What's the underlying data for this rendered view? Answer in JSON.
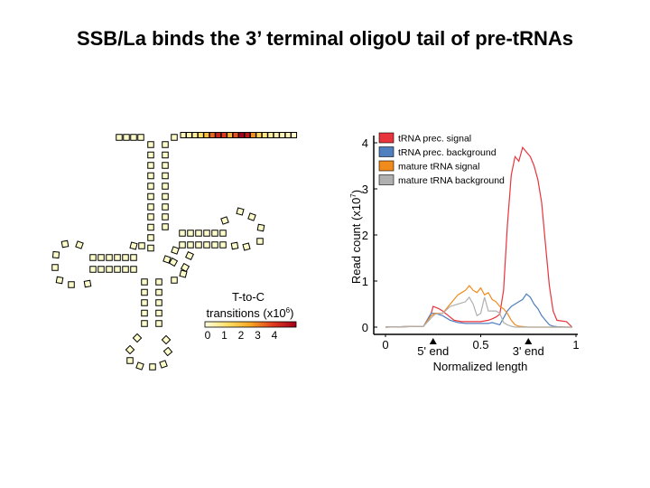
{
  "slide": {
    "title": "SSB/La binds the 3’ terminal oligoU tail of pre-tRNAs"
  },
  "trna_figure": {
    "colorbar_title_line1": "T-to-C",
    "colorbar_title_line2_prefix": "transitions (x10",
    "colorbar_title_line2_exp": "6",
    "colorbar_title_line2_suffix": ")",
    "colorbar_ticks": [
      "0",
      "1",
      "2",
      "3",
      "4"
    ],
    "colorbar_colors": [
      "#ffffe0",
      "#ffe066",
      "#f5a623",
      "#e03a1e",
      "#a3001a"
    ],
    "tail_values": [
      0.3,
      0.4,
      0.6,
      1.0,
      1.6,
      2.6,
      3.4,
      3.0,
      1.8,
      2.8,
      4.0,
      3.6,
      2.2,
      1.2,
      0.8,
      0.5,
      0.4,
      0.3,
      0.3,
      0.2
    ],
    "nucleotide_fill": "#ffffcc"
  },
  "chart_data": {
    "type": "line",
    "title": "",
    "xlabel": "Normalized length",
    "ylabel_prefix": "Read count (x10",
    "ylabel_exp": "7",
    "ylabel_suffix": ")",
    "xlim": [
      -0.05,
      1.02
    ],
    "ylim": [
      -0.1,
      4.15
    ],
    "x_ticks": [
      "0",
      "0.5",
      "1"
    ],
    "x_tick_values": [
      0,
      0.5,
      1
    ],
    "y_ticks": [
      "0",
      "1",
      "2",
      "3",
      "4"
    ],
    "y_tick_values": [
      0,
      1,
      2,
      3,
      4
    ],
    "annotations": [
      {
        "label": "5' end",
        "x": 0.25
      },
      {
        "label": "3' end",
        "x": 0.75
      }
    ],
    "legend_position": "top-left",
    "series": [
      {
        "name": "tRNA prec. signal",
        "color": "#e8343c",
        "x": [
          0,
          0.2,
          0.24,
          0.25,
          0.28,
          0.3,
          0.33,
          0.36,
          0.4,
          0.44,
          0.48,
          0.5,
          0.54,
          0.56,
          0.58,
          0.6,
          0.62,
          0.64,
          0.66,
          0.68,
          0.7,
          0.72,
          0.74,
          0.76,
          0.78,
          0.8,
          0.82,
          0.84,
          0.86,
          0.88,
          0.9,
          0.95,
          0.98
        ],
        "values": [
          0,
          0.02,
          0.3,
          0.45,
          0.4,
          0.35,
          0.25,
          0.15,
          0.12,
          0.12,
          0.12,
          0.12,
          0.15,
          0.18,
          0.22,
          0.28,
          0.8,
          2.2,
          3.3,
          3.7,
          3.6,
          3.9,
          3.8,
          3.7,
          3.5,
          3.2,
          2.7,
          1.8,
          0.9,
          0.35,
          0.15,
          0.12,
          0.0
        ]
      },
      {
        "name": "tRNA prec. background",
        "color": "#4f7fbf",
        "x": [
          0,
          0.2,
          0.24,
          0.26,
          0.3,
          0.34,
          0.38,
          0.42,
          0.46,
          0.5,
          0.54,
          0.56,
          0.6,
          0.62,
          0.64,
          0.66,
          0.68,
          0.7,
          0.72,
          0.74,
          0.76,
          0.78,
          0.8,
          0.82,
          0.84,
          0.86,
          0.88,
          0.9,
          0.95,
          0.98
        ],
        "values": [
          0,
          0.02,
          0.3,
          0.3,
          0.25,
          0.15,
          0.1,
          0.08,
          0.08,
          0.08,
          0.08,
          0.1,
          0.05,
          0.2,
          0.35,
          0.45,
          0.5,
          0.55,
          0.6,
          0.72,
          0.65,
          0.5,
          0.4,
          0.25,
          0.15,
          0.05,
          0.02,
          0.01,
          0.0,
          0.0
        ]
      },
      {
        "name": "mature tRNA signal",
        "color": "#f08b1c",
        "x": [
          0,
          0.2,
          0.24,
          0.26,
          0.3,
          0.34,
          0.38,
          0.4,
          0.42,
          0.44,
          0.46,
          0.48,
          0.5,
          0.52,
          0.54,
          0.56,
          0.58,
          0.6,
          0.62,
          0.64,
          0.66,
          0.68,
          0.7,
          0.75,
          0.98
        ],
        "values": [
          0,
          0.02,
          0.25,
          0.3,
          0.3,
          0.5,
          0.7,
          0.75,
          0.8,
          0.9,
          0.8,
          0.75,
          0.85,
          0.7,
          0.75,
          0.6,
          0.55,
          0.45,
          0.4,
          0.3,
          0.15,
          0.05,
          0.02,
          0.0,
          0.0
        ]
      },
      {
        "name": "mature tRNA background",
        "color": "#b0b0b0",
        "x": [
          0,
          0.2,
          0.24,
          0.26,
          0.3,
          0.34,
          0.38,
          0.42,
          0.44,
          0.46,
          0.48,
          0.5,
          0.52,
          0.54,
          0.58,
          0.6,
          0.62,
          0.64,
          0.66,
          0.68,
          0.98
        ],
        "values": [
          0,
          0.02,
          0.2,
          0.28,
          0.3,
          0.45,
          0.5,
          0.55,
          0.65,
          0.5,
          0.25,
          0.3,
          0.65,
          0.35,
          0.35,
          0.3,
          0.1,
          0.05,
          0.02,
          0.0,
          0.0
        ]
      }
    ]
  }
}
